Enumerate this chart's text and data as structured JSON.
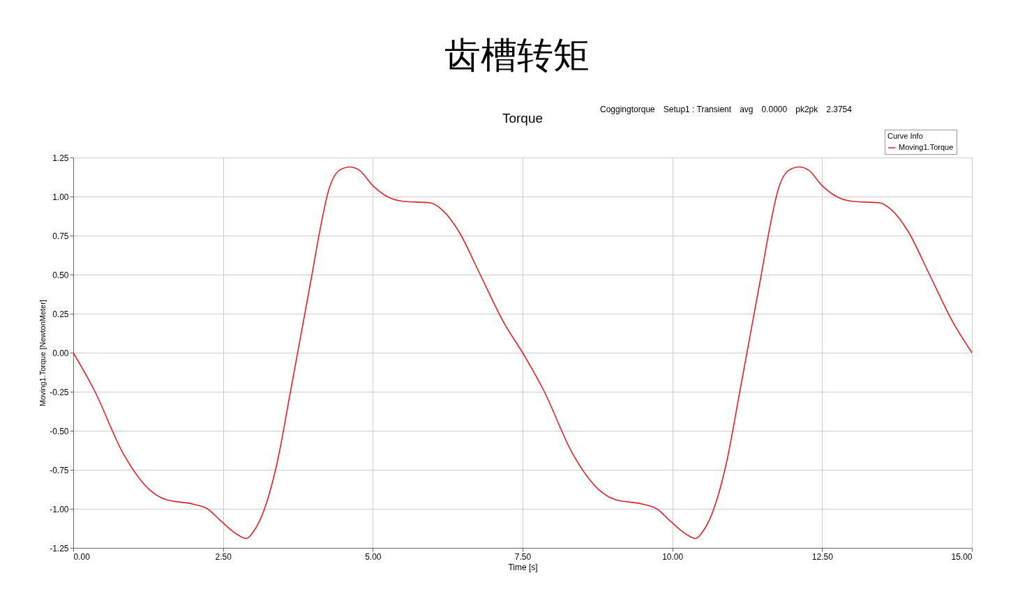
{
  "chart_data": {
    "type": "line",
    "title": "齿槽转矩",
    "subtitle": "Torque",
    "xlabel": "Time [s]",
    "ylabel": "Moving1.Torque [NewtonMeter]",
    "legend_title": "Curve Info",
    "annotations": [
      "Coggingtorque",
      "Setup1 : Transient",
      "avg",
      "0.0000",
      "pk2pk",
      "2.3754"
    ],
    "x": [
      0,
      0.35,
      0.84,
      1.28,
      1.54,
      2.0,
      2.24,
      2.47,
      2.76,
      2.89,
      3.0,
      3.12,
      3.26,
      3.4,
      3.63,
      3.98,
      4.12,
      4.27,
      4.45,
      4.62,
      4.77,
      5.0,
      5.24,
      5.5,
      5.96,
      6.17,
      6.43,
      6.78,
      7.19,
      7.5,
      7.85,
      8.34,
      8.78,
      9.04,
      9.5,
      9.74,
      9.97,
      10.26,
      10.39,
      10.5,
      10.62,
      10.76,
      10.9,
      11.13,
      11.48,
      11.62,
      11.77,
      11.95,
      12.12,
      12.27,
      12.5,
      12.74,
      13.0,
      13.46,
      13.67,
      13.93,
      14.28,
      14.69,
      15
    ],
    "series": [
      {
        "name": "Moving1.Torque",
        "color": "#e0202a",
        "values": [
          0,
          -0.24,
          -0.65,
          -0.88,
          -0.94,
          -0.97,
          -1.0,
          -1.08,
          -1.17,
          -1.19,
          -1.15,
          -1.07,
          -0.92,
          -0.71,
          -0.24,
          0.49,
          0.79,
          1.05,
          1.17,
          1.19,
          1.17,
          1.07,
          1.0,
          0.97,
          0.96,
          0.91,
          0.78,
          0.51,
          0.19,
          0.0,
          -0.24,
          -0.65,
          -0.88,
          -0.94,
          -0.97,
          -1.0,
          -1.08,
          -1.17,
          -1.19,
          -1.15,
          -1.07,
          -0.92,
          -0.71,
          -0.24,
          0.49,
          0.79,
          1.05,
          1.17,
          1.19,
          1.17,
          1.07,
          1.0,
          0.97,
          0.96,
          0.91,
          0.78,
          0.51,
          0.19,
          0.0
        ]
      }
    ],
    "xlim": [
      0,
      15
    ],
    "xticks": [
      {
        "value": 0,
        "label": "0.00"
      },
      {
        "value": 2.5,
        "label": "2.50"
      },
      {
        "value": 5,
        "label": "5.00"
      },
      {
        "value": 7.5,
        "label": "7.50"
      },
      {
        "value": 10,
        "label": "10.00"
      },
      {
        "value": 12.5,
        "label": "12.50"
      },
      {
        "value": 15,
        "label": "15.00"
      }
    ],
    "ylim": [
      -1.25,
      1.25
    ],
    "yticks": [
      {
        "value": -1.25,
        "label": "-1.25"
      },
      {
        "value": -1,
        "label": "-1.00"
      },
      {
        "value": -0.75,
        "label": "-0.75"
      },
      {
        "value": -0.5,
        "label": "-0.50"
      },
      {
        "value": -0.25,
        "label": "-0.25"
      },
      {
        "value": 0,
        "label": "0.00"
      },
      {
        "value": 0.25,
        "label": "0.25"
      },
      {
        "value": 0.5,
        "label": "0.50"
      },
      {
        "value": 0.75,
        "label": "0.75"
      },
      {
        "value": 1,
        "label": "1.00"
      },
      {
        "value": 1.25,
        "label": "1.25"
      }
    ],
    "grid": true,
    "legend": "top right",
    "marker": "none",
    "line_style": "solid"
  }
}
